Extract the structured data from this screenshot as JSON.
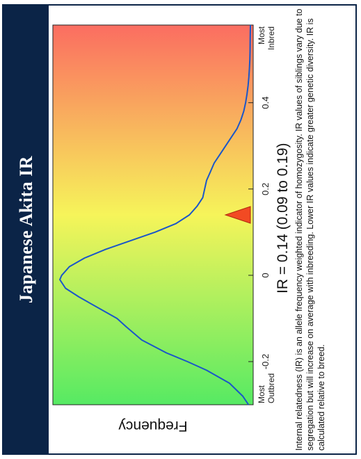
{
  "title": "Japanese Akita IR",
  "ir_text": "IR = 0.14 (0.09 to 0.19)",
  "caption": "Internal relatedness (IR) is an allele frequency weighted indicator of homozygosity.  IR values of siblings vary due to segregation but will increase on average with inbreeding.  Lower IR values indicate greater genetic diversity.  IR is calculated relative to breed.",
  "chart_data": {
    "type": "area",
    "title": "Japanese Akita IR",
    "ylabel": "Frequency",
    "xlabel": "",
    "xlim": [
      -0.3,
      0.58
    ],
    "ticks": [
      {
        "value": -0.2,
        "label": "-0.2"
      },
      {
        "value": 0,
        "label": "0"
      },
      {
        "value": 0.2,
        "label": "0.2"
      },
      {
        "value": 0.4,
        "label": "0.4"
      }
    ],
    "left_end_label": [
      "Most",
      "Outbred"
    ],
    "right_end_label": [
      "Most",
      "Inbred"
    ],
    "gradient": [
      "#56ea63",
      "#f6f45a",
      "#fb6d61"
    ],
    "curve_color": "#1a56c9",
    "marker_color": "#f24a23",
    "marker_value": 0.14,
    "interval": [
      0.09,
      0.19
    ],
    "curve": {
      "x": [
        -0.3,
        -0.28,
        -0.25,
        -0.22,
        -0.2,
        -0.18,
        -0.15,
        -0.12,
        -0.1,
        -0.08,
        -0.05,
        -0.03,
        -0.01,
        0.0,
        0.02,
        0.04,
        0.06,
        0.08,
        0.1,
        0.12,
        0.14,
        0.16,
        0.18,
        0.2,
        0.22,
        0.24,
        0.26,
        0.28,
        0.3,
        0.32,
        0.34,
        0.36,
        0.38,
        0.4,
        0.42,
        0.44,
        0.46,
        0.48,
        0.5,
        0.52,
        0.55,
        0.58
      ],
      "y": [
        0.01,
        0.04,
        0.11,
        0.23,
        0.33,
        0.44,
        0.57,
        0.65,
        0.7,
        0.78,
        0.9,
        0.97,
        1.0,
        0.99,
        0.95,
        0.87,
        0.76,
        0.63,
        0.5,
        0.39,
        0.32,
        0.28,
        0.25,
        0.24,
        0.23,
        0.21,
        0.19,
        0.16,
        0.13,
        0.1,
        0.07,
        0.05,
        0.035,
        0.025,
        0.018,
        0.012,
        0.008,
        0.005,
        0.003,
        0.002,
        0.001,
        0.0
      ]
    }
  }
}
